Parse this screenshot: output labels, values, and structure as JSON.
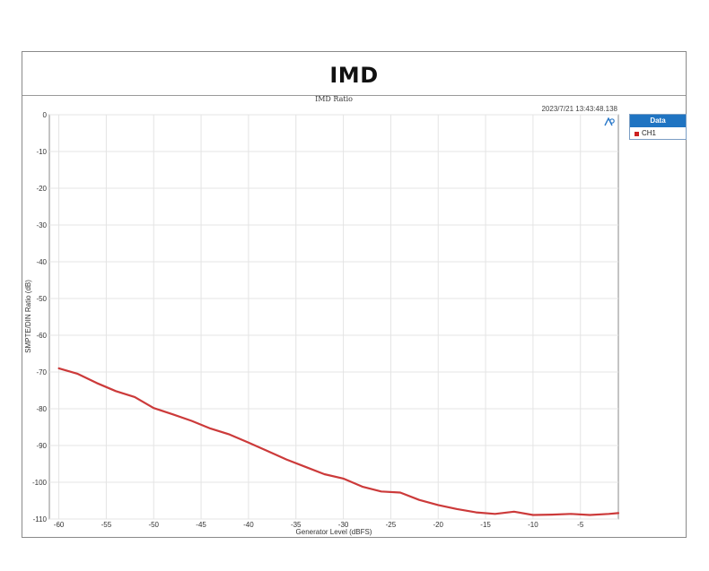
{
  "page": {
    "title": "IMD"
  },
  "chart_data": {
    "type": "line",
    "title": "IMD Ratio",
    "timestamp": "2023/7/21 13:43:48.138",
    "xlabel": "Generator Level (dBFS)",
    "ylabel": "SMPTE/DIN Ratio (dB)",
    "xlim": [
      -61,
      -1
    ],
    "ylim": [
      -110,
      0
    ],
    "xticks": [
      -60,
      -55,
      -50,
      -45,
      -40,
      -35,
      -30,
      -25,
      -20,
      -15,
      -10,
      -5
    ],
    "yticks": [
      0,
      -10,
      -20,
      -30,
      -40,
      -50,
      -60,
      -70,
      -80,
      -90,
      -100,
      -110
    ],
    "grid": true,
    "legend": {
      "title": "Data",
      "placement": "right"
    },
    "colors": {
      "line": "#cc3a3a",
      "grid": "#e4e4e4",
      "axis": "#8a8a8a",
      "legend_header": "#1f74c2"
    },
    "series": [
      {
        "name": "CH1",
        "x": [
          -60,
          -58,
          -56,
          -54,
          -52,
          -50,
          -48,
          -46,
          -44,
          -42,
          -40,
          -38,
          -36,
          -34,
          -32,
          -30,
          -28,
          -26,
          -24,
          -22,
          -20,
          -18,
          -16,
          -14,
          -12,
          -10,
          -8,
          -6,
          -4,
          -2,
          -1
        ],
        "values": [
          -69,
          -70.5,
          -73,
          -75.2,
          -76.8,
          -79.8,
          -81.5,
          -83.3,
          -85.4,
          -87,
          -89.2,
          -91.5,
          -93.8,
          -95.8,
          -97.8,
          -99,
          -101.2,
          -102.5,
          -102.8,
          -104.8,
          -106.2,
          -107.3,
          -108.2,
          -108.6,
          -108,
          -108.9,
          -108.8,
          -108.6,
          -108.9,
          -108.6,
          -108.4
        ]
      }
    ]
  }
}
